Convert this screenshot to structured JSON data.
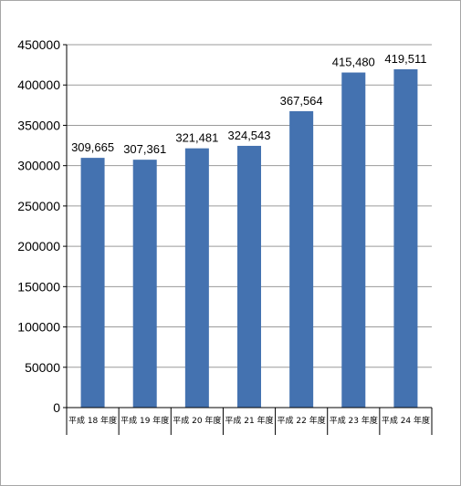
{
  "chart_data": {
    "type": "bar",
    "categories": [
      "平成 18 年度",
      "平成 19 年度",
      "平成 20 年度",
      "平成 21 年度",
      "平成 22 年度",
      "平成 23 年度",
      "平成 24 年度"
    ],
    "values": [
      309665,
      307361,
      321481,
      324543,
      367564,
      415480,
      419511
    ],
    "data_labels": [
      "309,665",
      "307,361",
      "321,481",
      "324,543",
      "367,564",
      "415,480",
      "419,511"
    ],
    "yticks": [
      "0",
      "50000",
      "100000",
      "150000",
      "200000",
      "250000",
      "300000",
      "350000",
      "400000",
      "450000"
    ],
    "ylim": [
      0,
      450000
    ],
    "grid": true,
    "bar_color": "#4472b0",
    "grid_color": "#9a9a9a",
    "title": "",
    "xlabel": "",
    "ylabel": ""
  }
}
